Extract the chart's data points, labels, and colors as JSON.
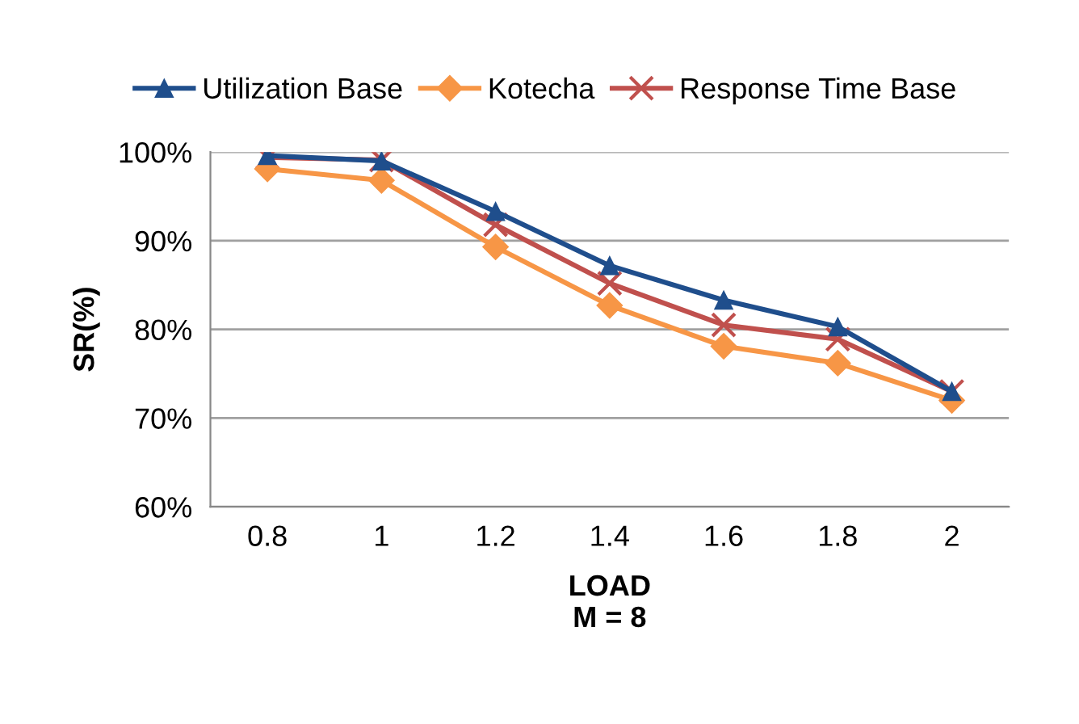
{
  "chart_data": {
    "type": "line",
    "xlabel": "LOAD\nM = 8",
    "ylabel": "SR(%)",
    "categories": [
      "0.8",
      "1",
      "1.2",
      "1.4",
      "1.6",
      "1.8",
      "2"
    ],
    "series": [
      {
        "name": "Utilization Base",
        "color": "#1f4e8c",
        "marker": "triangle",
        "values": [
          99.6,
          99.0,
          93.3,
          87.2,
          83.3,
          80.3,
          73.0
        ]
      },
      {
        "name": "Kotecha",
        "color": "#f79646",
        "marker": "diamond",
        "values": [
          98.1,
          96.8,
          89.3,
          82.7,
          78.1,
          76.2,
          72.0
        ]
      },
      {
        "name": "Response Time Base",
        "color": "#c0504d",
        "marker": "cross",
        "values": [
          99.4,
          99.1,
          91.8,
          85.2,
          80.5,
          78.9,
          73.0
        ]
      }
    ],
    "ylim": [
      60,
      100
    ],
    "yticks": [
      {
        "value": 60,
        "label": "60%"
      },
      {
        "value": 70,
        "label": "70%"
      },
      {
        "value": 80,
        "label": "80%"
      },
      {
        "value": 90,
        "label": "90%"
      },
      {
        "value": 100,
        "label": "100%"
      }
    ],
    "grid": "y",
    "legend": "top",
    "line_style": "solid"
  }
}
